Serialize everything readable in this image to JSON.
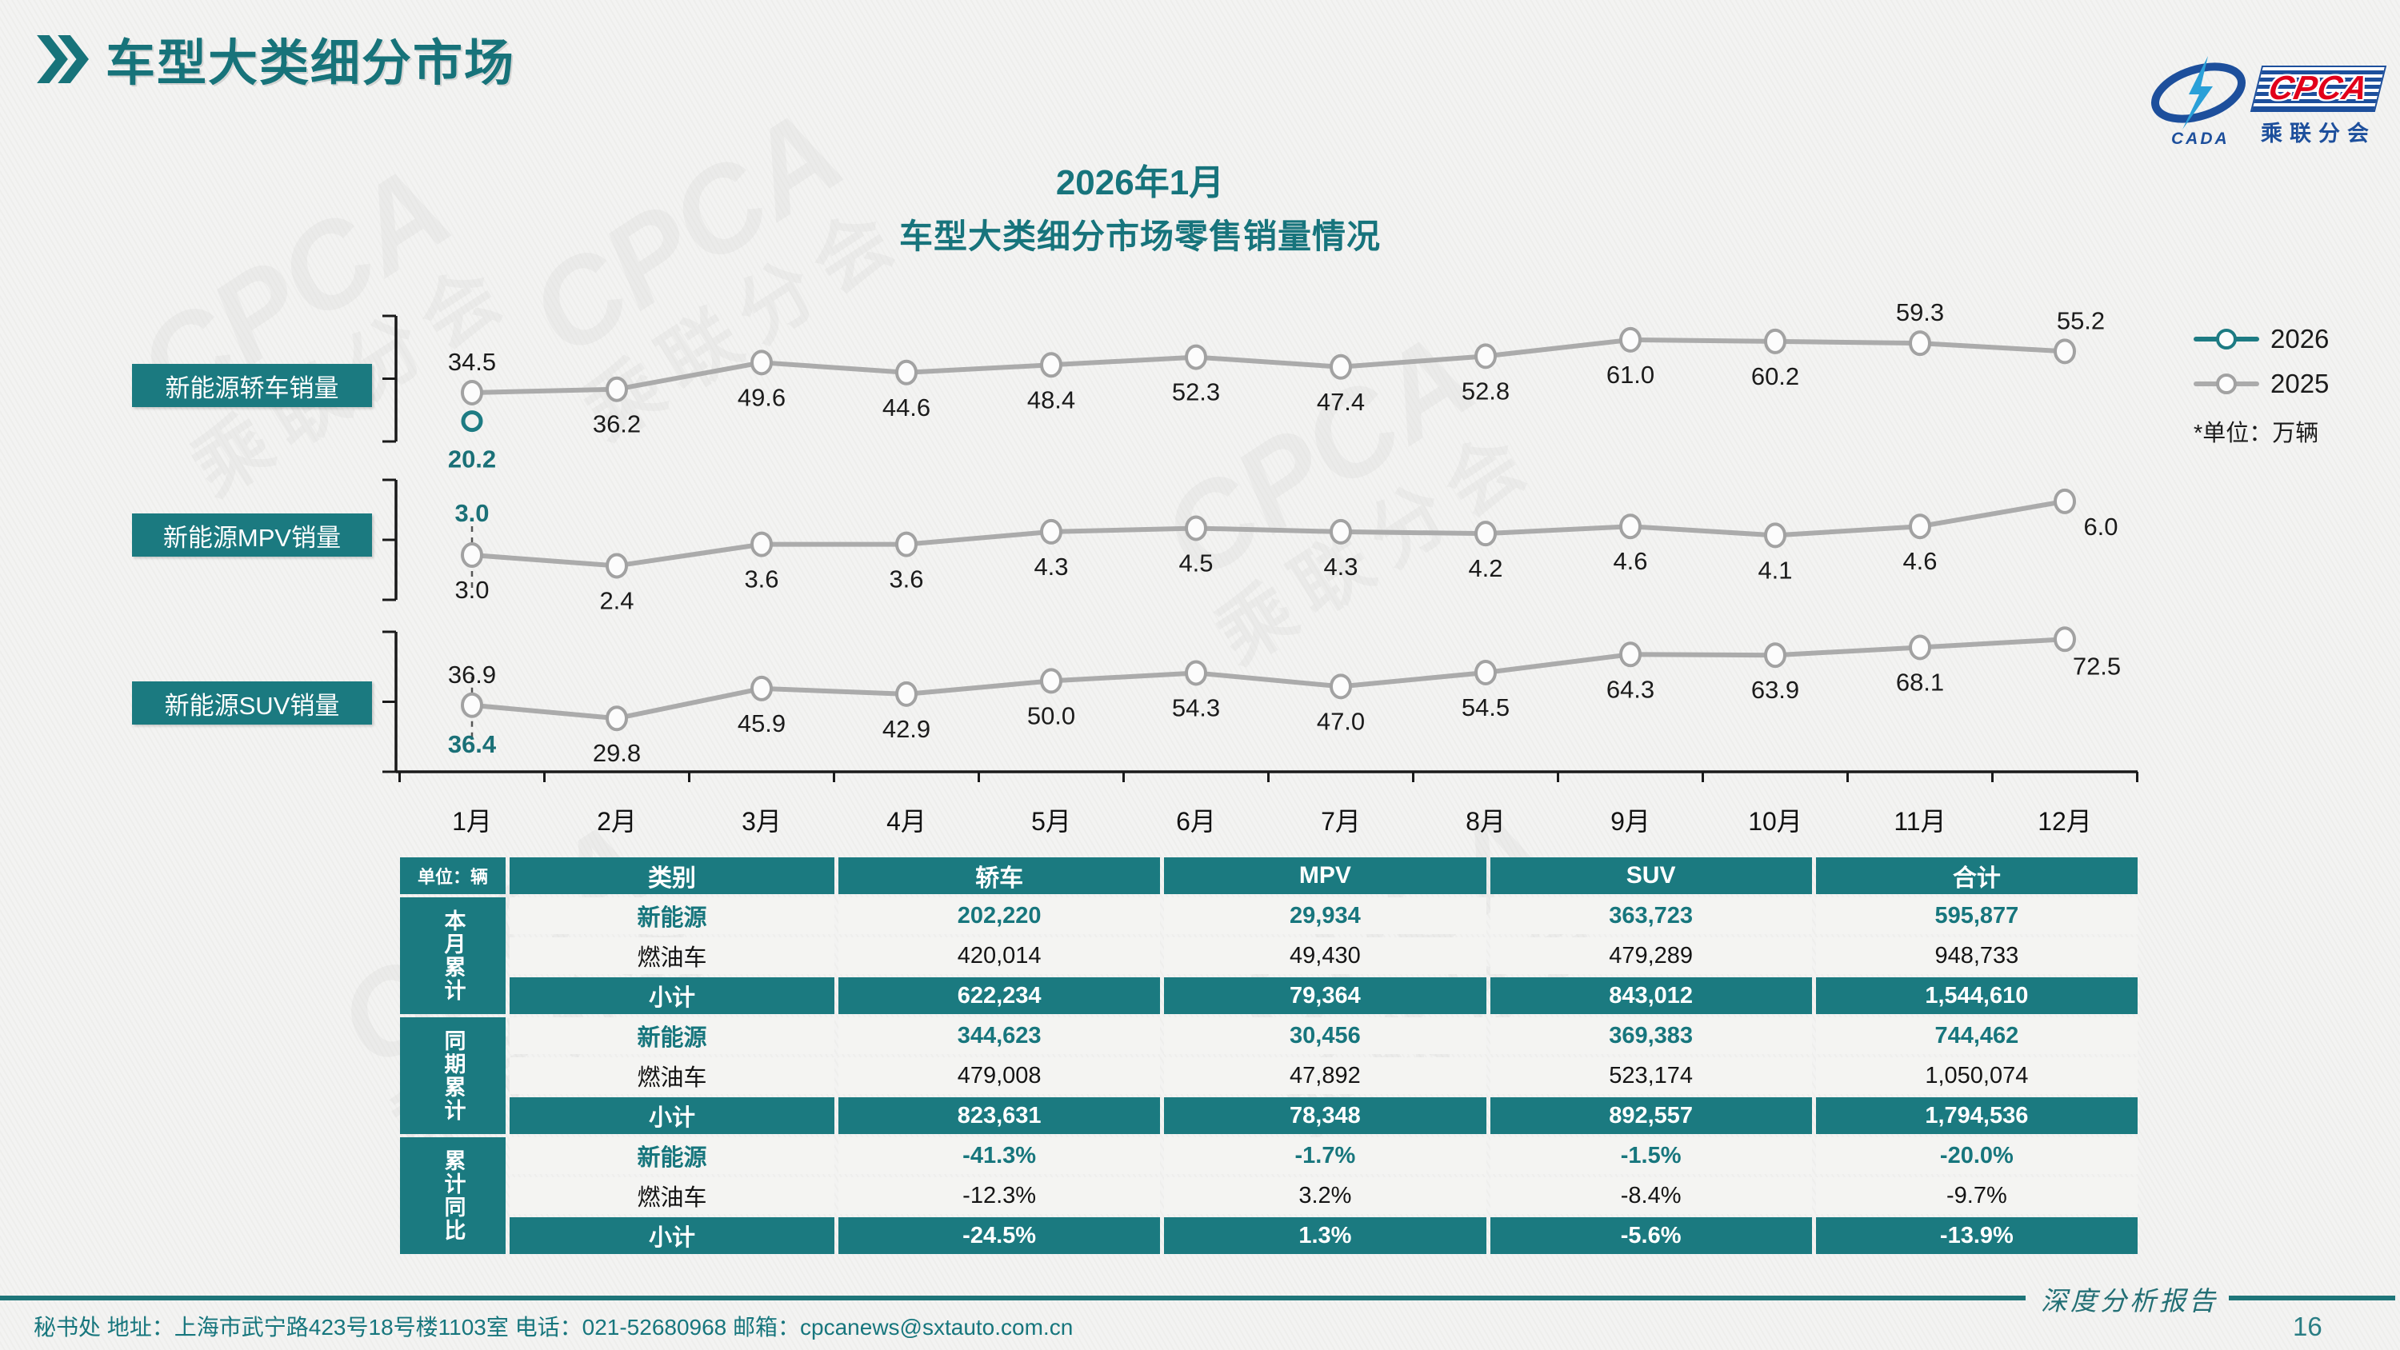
{
  "page": {
    "title": "车型大类细分市场",
    "footer": "秘书处   地址：上海市武宁路423号18号楼1103室  电话：021-52680968   邮箱：cpcanews@sxtauto.com.cn",
    "report_label": "深度分析报告",
    "page_number": "16"
  },
  "logo": {
    "cpca": "CPCA",
    "sub": "乘联分会",
    "cada": "CADA"
  },
  "colors": {
    "accent_teal": "#17747c",
    "table_teal": "#1b7a80",
    "line_2025": "#ababab",
    "line_2026": "#1d7b83",
    "footer_teal": "#1e7579",
    "logo_blue": "#1d4f9c",
    "logo_red": "#e2001a"
  },
  "chart": {
    "title_line1": "2026年1月",
    "title_line2": "车型大类细分市场零售销量情况",
    "unit_note": "*单位：万辆",
    "legend": [
      {
        "label": "2026",
        "color": "#1d7b83"
      },
      {
        "label": "2025",
        "color": "#ababab"
      }
    ],
    "months": [
      "1月",
      "2月",
      "3月",
      "4月",
      "5月",
      "6月",
      "7月",
      "8月",
      "9月",
      "10月",
      "11月",
      "12月"
    ]
  },
  "chart_data": [
    {
      "type": "line",
      "title": "新能源轿车销量",
      "x": [
        "1月",
        "2月",
        "3月",
        "4月",
        "5月",
        "6月",
        "7月",
        "8月",
        "9月",
        "10月",
        "11月",
        "12月"
      ],
      "series": [
        {
          "name": "2025",
          "values": [
            34.5,
            36.2,
            49.6,
            44.6,
            48.4,
            52.3,
            47.4,
            52.8,
            61.0,
            60.2,
            59.3,
            55.2
          ]
        },
        {
          "name": "2026",
          "values": [
            20.2
          ]
        }
      ],
      "ylim": [
        10,
        73
      ],
      "unit": "万辆",
      "legend_position": "right",
      "grid": false
    },
    {
      "type": "line",
      "title": "新能源MPV销量",
      "x": [
        "1月",
        "2月",
        "3月",
        "4月",
        "5月",
        "6月",
        "7月",
        "8月",
        "9月",
        "10月",
        "11月",
        "12月"
      ],
      "series": [
        {
          "name": "2025",
          "values": [
            3.0,
            2.4,
            3.6,
            3.6,
            4.3,
            4.5,
            4.3,
            4.2,
            4.6,
            4.1,
            4.6,
            6.0
          ]
        },
        {
          "name": "2026",
          "values": [
            3.0
          ]
        }
      ],
      "ylim": [
        0.5,
        7.2
      ],
      "unit": "万辆",
      "legend_position": "right",
      "grid": false
    },
    {
      "type": "line",
      "title": "新能源SUV销量",
      "x": [
        "1月",
        "2月",
        "3月",
        "4月",
        "5月",
        "6月",
        "7月",
        "8月",
        "9月",
        "10月",
        "11月",
        "12月"
      ],
      "series": [
        {
          "name": "2025",
          "values": [
            36.9,
            29.8,
            45.9,
            42.9,
            50.0,
            54.3,
            47.0,
            54.5,
            64.3,
            63.9,
            68.1,
            72.5
          ]
        },
        {
          "name": "2026",
          "values": [
            36.4
          ]
        }
      ],
      "ylim": [
        4,
        76.5
      ],
      "unit": "万辆",
      "legend_position": "right",
      "grid": false
    }
  ],
  "table": {
    "unit_label": "单位：辆",
    "col_headers": [
      "类别",
      "轿车",
      "MPV",
      "SUV",
      "合计"
    ],
    "groups": [
      {
        "label": "本月累计",
        "rows": [
          {
            "label": "新能源",
            "style": "nev",
            "cells": [
              "202,220",
              "29,934",
              "363,723",
              "595,877"
            ]
          },
          {
            "label": "燃油车",
            "style": "ice",
            "cells": [
              "420,014",
              "49,430",
              "479,289",
              "948,733"
            ]
          },
          {
            "label": "小计",
            "style": "sub",
            "cells": [
              "622,234",
              "79,364",
              "843,012",
              "1,544,610"
            ]
          }
        ]
      },
      {
        "label": "同期累计",
        "rows": [
          {
            "label": "新能源",
            "style": "nev",
            "cells": [
              "344,623",
              "30,456",
              "369,383",
              "744,462"
            ]
          },
          {
            "label": "燃油车",
            "style": "ice",
            "cells": [
              "479,008",
              "47,892",
              "523,174",
              "1,050,074"
            ]
          },
          {
            "label": "小计",
            "style": "sub",
            "cells": [
              "823,631",
              "78,348",
              "892,557",
              "1,794,536"
            ]
          }
        ]
      },
      {
        "label": "累计同比",
        "rows": [
          {
            "label": "新能源",
            "style": "nev",
            "cells": [
              "-41.3%",
              "-1.7%",
              "-1.5%",
              "-20.0%"
            ]
          },
          {
            "label": "燃油车",
            "style": "ice",
            "cells": [
              "-12.3%",
              "3.2%",
              "-8.4%",
              "-9.7%"
            ]
          },
          {
            "label": "小计",
            "style": "sub",
            "cells": [
              "-24.5%",
              "1.3%",
              "-5.6%",
              "-13.9%"
            ]
          }
        ]
      }
    ]
  }
}
